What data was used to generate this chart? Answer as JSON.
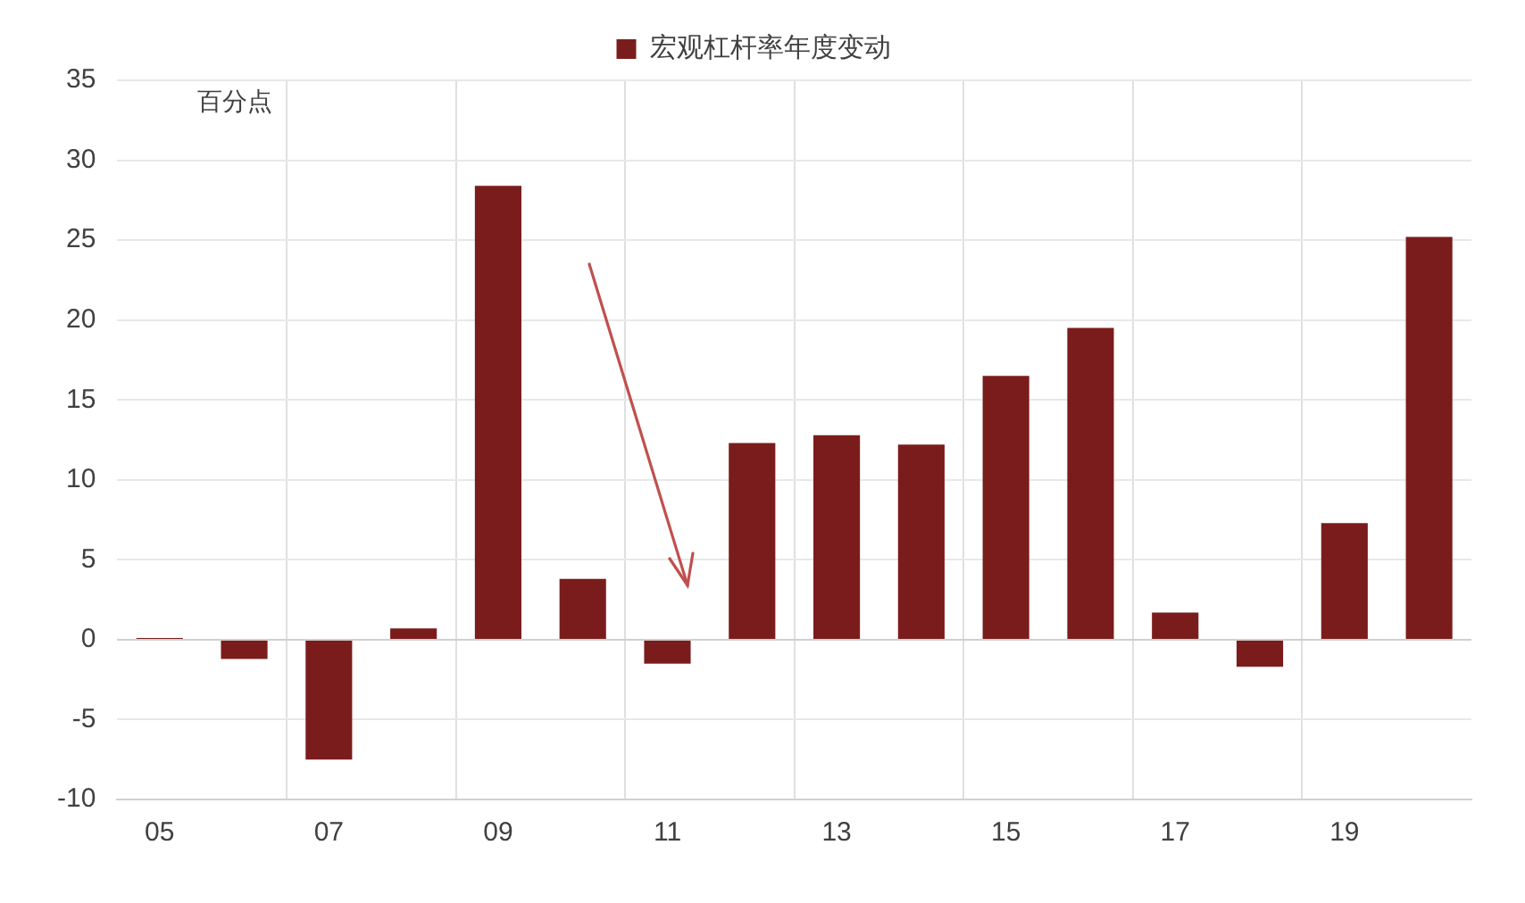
{
  "chart_data": {
    "type": "bar",
    "categories": [
      "05",
      null,
      "07",
      null,
      "09",
      null,
      "11",
      null,
      "13",
      null,
      "15",
      null,
      "17",
      null,
      "19",
      null
    ],
    "series": [
      {
        "name": "宏观杠杆率年度变动",
        "color": "#7b1c1c",
        "values": [
          0.1,
          -1.2,
          -7.5,
          0.7,
          28.4,
          3.8,
          -1.5,
          12.3,
          12.8,
          12.2,
          16.5,
          19.5,
          1.7,
          -1.7,
          7.3,
          25.2
        ]
      }
    ],
    "ylim": [
      -10,
      35
    ],
    "yticks": [
      -10,
      -5,
      0,
      5,
      10,
      15,
      20,
      25,
      30,
      35
    ],
    "grid": true,
    "legend": "top",
    "annotations": [
      "百分点"
    ]
  }
}
